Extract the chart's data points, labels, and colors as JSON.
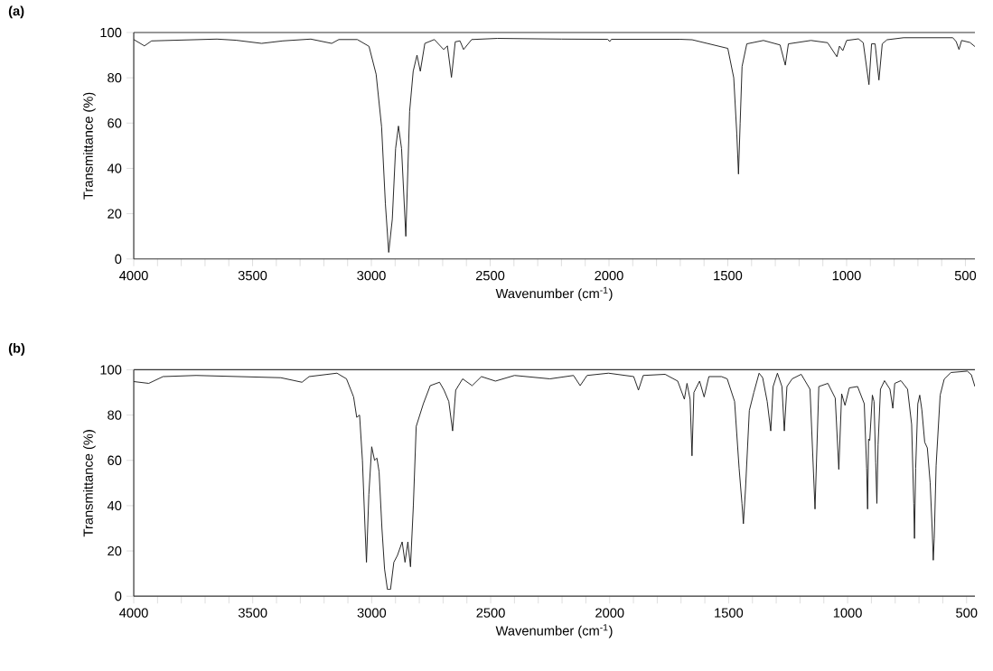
{
  "chart_data": [
    {
      "type": "line",
      "title": "(a)",
      "xlabel": "Wavenumber (cm$^{-1}$)",
      "ylabel": "Transmittance (%)",
      "color": "#1a1a1a",
      "marker": "none",
      "line_style": "solid",
      "xlim": [
        4000,
        460
      ],
      "ylim": [
        0,
        100
      ],
      "yticks": [
        0,
        20,
        40,
        60,
        80,
        100
      ],
      "xticks": [
        4000,
        {
          "value": 3900,
          "label": null
        },
        {
          "value": 3800,
          "label": null
        },
        {
          "value": 3700,
          "label": null
        },
        {
          "value": 3600,
          "label": null
        },
        3500,
        {
          "value": 3400,
          "label": null
        },
        {
          "value": 3300,
          "label": null
        },
        {
          "value": 3200,
          "label": null
        },
        {
          "value": 3100,
          "label": null
        },
        3000,
        {
          "value": 2900,
          "label": null
        },
        {
          "value": 2800,
          "label": null
        },
        {
          "value": 2700,
          "label": null
        },
        {
          "value": 2600,
          "label": null
        },
        2500,
        {
          "value": 2400,
          "label": null
        },
        {
          "value": 2300,
          "label": null
        },
        {
          "value": 2200,
          "label": null
        },
        {
          "value": 2100,
          "label": null
        },
        2000,
        {
          "value": 1900,
          "label": null
        },
        {
          "value": 1800,
          "label": null
        },
        {
          "value": 1700,
          "label": null
        },
        {
          "value": 1600,
          "label": null
        },
        1500,
        {
          "value": 1400,
          "label": null
        },
        {
          "value": 1300,
          "label": null
        },
        {
          "value": 1200,
          "label": null
        },
        {
          "value": 1100,
          "label": null
        },
        1000,
        {
          "value": 900,
          "label": null
        },
        {
          "value": 800,
          "label": null
        },
        {
          "value": 700,
          "label": null
        },
        {
          "value": 600,
          "label": null
        },
        500
      ],
      "x": [
        4000,
        3955,
        3925,
        3650,
        3570,
        3462,
        3373,
        3255,
        3167,
        3137,
        3059,
        3010,
        2980,
        2957,
        2941,
        2927,
        2912,
        2898,
        2886,
        2873,
        2855,
        2839,
        2824,
        2808,
        2794,
        2775,
        2735,
        2696,
        2680,
        2663,
        2647,
        2627,
        2612,
        2578,
        2470,
        2200,
        2005,
        1997,
        1990,
        1700,
        1650,
        1500,
        1475,
        1462,
        1455,
        1448,
        1440,
        1420,
        1350,
        1280,
        1258,
        1245,
        1150,
        1080,
        1041,
        1030,
        1016,
        1000,
        950,
        930,
        906,
        895,
        880,
        864,
        850,
        830,
        760,
        600,
        553,
        539,
        527,
        516,
        481,
        460
      ],
      "values": [
        96.9,
        94.1,
        96.3,
        97.1,
        96.6,
        95.2,
        96.3,
        97.1,
        95.2,
        96.9,
        96.9,
        93.9,
        81.6,
        58.4,
        24.3,
        2.9,
        17.5,
        48.8,
        58.7,
        48.8,
        10,
        65.2,
        82.9,
        90,
        82.9,
        95.2,
        96.9,
        92.5,
        94.1,
        80.2,
        95.9,
        96.3,
        92.5,
        96.9,
        97.4,
        97.1,
        97.0,
        96,
        97,
        97,
        96.8,
        93,
        80,
        55,
        37.5,
        60,
        85,
        95,
        96.5,
        94.5,
        85.6,
        95,
        96.5,
        95.5,
        89.3,
        94,
        92,
        96.5,
        97.2,
        95.5,
        77,
        95,
        95,
        79,
        95,
        96.8,
        97.7,
        97.7,
        97.7,
        96,
        92.5,
        96.5,
        95.6,
        93.8
      ]
    },
    {
      "type": "line",
      "title": "(b)",
      "xlabel": "Wavenumber (cm$^{-1}$)",
      "ylabel": "Transmittance (%)",
      "color": "#1a1a1a",
      "marker": "none",
      "line_style": "solid",
      "xlim": [
        4000,
        465
      ],
      "ylim": [
        0,
        100
      ],
      "yticks": [
        0,
        20,
        40,
        60,
        80,
        100
      ],
      "xticks": [
        4000,
        {
          "value": 3900,
          "label": null
        },
        {
          "value": 3800,
          "label": null
        },
        {
          "value": 3700,
          "label": null
        },
        {
          "value": 3600,
          "label": null
        },
        3500,
        {
          "value": 3400,
          "label": null
        },
        {
          "value": 3300,
          "label": null
        },
        {
          "value": 3200,
          "label": null
        },
        {
          "value": 3100,
          "label": null
        },
        3000,
        {
          "value": 2900,
          "label": null
        },
        {
          "value": 2800,
          "label": null
        },
        {
          "value": 2700,
          "label": null
        },
        {
          "value": 2600,
          "label": null
        },
        2500,
        {
          "value": 2400,
          "label": null
        },
        {
          "value": 2300,
          "label": null
        },
        {
          "value": 2200,
          "label": null
        },
        {
          "value": 2100,
          "label": null
        },
        2000,
        {
          "value": 1900,
          "label": null
        },
        {
          "value": 1800,
          "label": null
        },
        {
          "value": 1700,
          "label": null
        },
        {
          "value": 1600,
          "label": null
        },
        1500,
        {
          "value": 1400,
          "label": null
        },
        {
          "value": 1300,
          "label": null
        },
        {
          "value": 1200,
          "label": null
        },
        {
          "value": 1100,
          "label": null
        },
        1000,
        {
          "value": 900,
          "label": null
        },
        {
          "value": 800,
          "label": null
        },
        {
          "value": 700,
          "label": null
        },
        {
          "value": 600,
          "label": null
        },
        500
      ],
      "x": [
        4000,
        3937,
        3877,
        3738,
        3382,
        3293,
        3263,
        3146,
        3106,
        3076,
        3063,
        3051,
        3039,
        3028,
        3022,
        3012,
        3000,
        2988,
        2978,
        2969,
        2957,
        2946,
        2934,
        2921,
        2907,
        2892,
        2872,
        2860,
        2848,
        2837,
        2825,
        2813,
        2783,
        2754,
        2715,
        2696,
        2676,
        2660,
        2647,
        2618,
        2578,
        2539,
        2480,
        2400,
        2251,
        2152,
        2124,
        2095,
        2005,
        1899,
        1879,
        1859,
        1767,
        1714,
        1686,
        1675,
        1662,
        1654,
        1646,
        1622,
        1603,
        1583,
        1530,
        1506,
        1475,
        1456,
        1444,
        1438,
        1429,
        1413,
        1394,
        1372,
        1357,
        1338,
        1323,
        1313,
        1295,
        1276,
        1266,
        1255,
        1233,
        1195,
        1158,
        1137,
        1121,
        1083,
        1052,
        1037,
        1025,
        1011,
        993,
        958,
        930,
        920,
        916,
        912,
        907,
        896,
        889,
        882,
        877,
        872,
        862,
        845,
        822,
        810,
        802,
        776,
        748,
        731,
        722,
        719,
        714,
        705,
        697,
        688,
        676,
        665,
        653,
        644,
        640,
        636,
        628,
        611,
        594,
        566,
        497,
        480,
        465
      ],
      "values": [
        94.8,
        94,
        97,
        97.5,
        96.5,
        94.5,
        97,
        98.5,
        96,
        88,
        79,
        80,
        60,
        30,
        15,
        45,
        66,
        60,
        61,
        55,
        30,
        12,
        3,
        3,
        15,
        18,
        24,
        15,
        24,
        13,
        40,
        75,
        85,
        93,
        94.5,
        91,
        86,
        73,
        91,
        96,
        93,
        97,
        95,
        97.5,
        96,
        97.5,
        93,
        97.5,
        98.5,
        97,
        91,
        97.5,
        98,
        95,
        87,
        94,
        87,
        62,
        90,
        95,
        88,
        97,
        97,
        96,
        86,
        56.5,
        41,
        32,
        47.5,
        82,
        90,
        98.5,
        96.5,
        86,
        73,
        92.6,
        98.5,
        92.6,
        73,
        92.6,
        96,
        98,
        91.4,
        38.5,
        92.6,
        94,
        87.5,
        56,
        89.4,
        84.3,
        92,
        92.6,
        85,
        56.5,
        38.5,
        69.4,
        68.8,
        88.8,
        86,
        59,
        41,
        66.8,
        91.4,
        95.2,
        91.4,
        83,
        94,
        95.2,
        91.4,
        75.9,
        41,
        25.5,
        56.5,
        85,
        88.8,
        82.3,
        68,
        65.5,
        50,
        28,
        15.9,
        25.5,
        57.8,
        88.8,
        95.9,
        98.8,
        99.4,
        97.8,
        92.6
      ]
    }
  ]
}
